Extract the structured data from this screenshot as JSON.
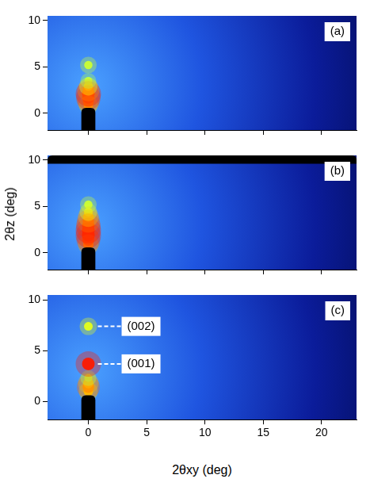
{
  "chart_data": [
    {
      "type": "scatter",
      "title": "(a)",
      "xlim": [
        -3.5,
        23
      ],
      "ylim": [
        -1.8,
        10.5
      ],
      "xticks": [
        0,
        5,
        10,
        15,
        20
      ],
      "yticks": [
        0,
        5,
        10
      ],
      "tick_labels": "y",
      "x": [
        0,
        0,
        0,
        0,
        0,
        0,
        0,
        0
      ],
      "y": [
        0.9,
        1.3,
        1.7,
        2.1,
        2.5,
        2.9,
        3.5,
        5.2
      ],
      "intensity": [
        0.6,
        0.8,
        0.95,
        1.0,
        0.8,
        0.55,
        0.4,
        0.45
      ],
      "masks": [
        [
          -0.6,
          0.6,
          -1.8,
          0.6
        ]
      ]
    },
    {
      "type": "scatter",
      "title": "(b)",
      "xlim": [
        -3.5,
        23
      ],
      "ylim": [
        -1.8,
        10.5
      ],
      "xticks": [
        0,
        5,
        10,
        15,
        20
      ],
      "yticks": [
        0,
        5,
        10
      ],
      "tick_labels": "y",
      "ylabel": "2θz (deg)",
      "x": [
        0,
        0,
        0,
        0,
        0,
        0,
        0,
        0,
        0
      ],
      "y": [
        0.9,
        1.4,
        1.9,
        2.4,
        2.9,
        3.4,
        3.9,
        4.4,
        5.2
      ],
      "intensity": [
        0.7,
        0.9,
        1.0,
        1.0,
        0.95,
        0.85,
        0.7,
        0.5,
        0.45
      ],
      "masks": [
        [
          -0.6,
          0.6,
          -1.8,
          0.6
        ],
        [
          -3.5,
          23,
          9.6,
          10.5
        ]
      ]
    },
    {
      "type": "scatter",
      "title": "(c)",
      "xlim": [
        -3.5,
        23
      ],
      "ylim": [
        -1.8,
        10.5
      ],
      "xticks": [
        0,
        5,
        10,
        15,
        20
      ],
      "yticks": [
        0,
        5,
        10
      ],
      "xlabel": "2θxy (deg)",
      "x": [
        0,
        0,
        0,
        0,
        0,
        0
      ],
      "y": [
        1.0,
        1.4,
        1.8,
        2.3,
        3.7,
        7.4
      ],
      "intensity": [
        0.6,
        0.85,
        0.7,
        0.4,
        1.0,
        0.5
      ],
      "masks": [
        [
          -0.6,
          0.6,
          -1.8,
          0.6
        ]
      ],
      "annotations": [
        {
          "text": "(002)",
          "x": 0,
          "y": 7.4
        },
        {
          "text": "(001)",
          "x": 0,
          "y": 3.7
        }
      ]
    }
  ]
}
